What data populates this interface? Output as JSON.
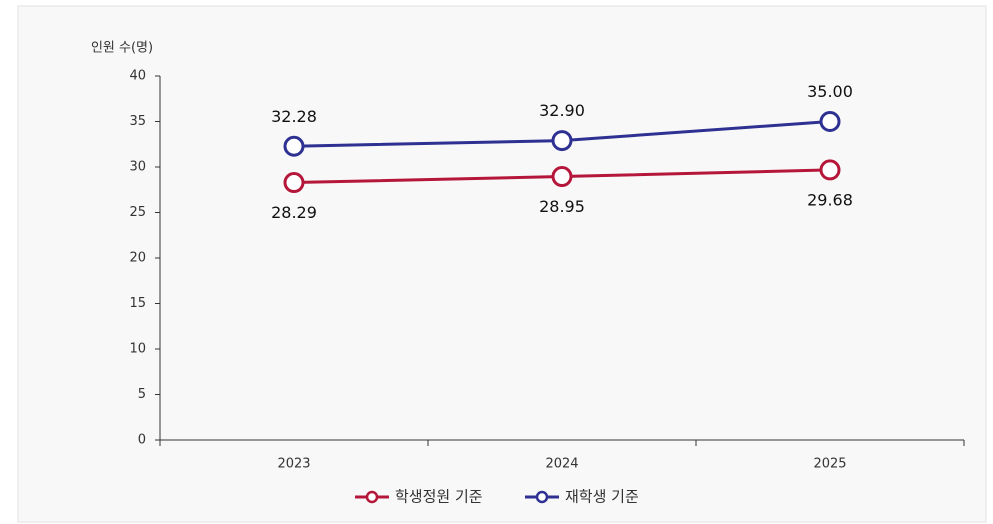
{
  "chart_data": {
    "type": "line",
    "y_label": "인원 수(명)",
    "categories": [
      "2023",
      "2024",
      "2025"
    ],
    "series": [
      {
        "name": "학생정원 기준",
        "color": "#b5173b",
        "values": [
          28.29,
          28.95,
          29.68
        ]
      },
      {
        "name": "재학생 기준",
        "color": "#2e3192",
        "values": [
          32.28,
          32.9,
          35.0
        ],
        "value_labels": [
          "32.28",
          "32.90",
          "35.00"
        ]
      }
    ],
    "ylim": [
      0,
      40
    ],
    "yticks": [
      0,
      5,
      10,
      15,
      20,
      25,
      30,
      35,
      40
    ],
    "legend": "bottom"
  }
}
